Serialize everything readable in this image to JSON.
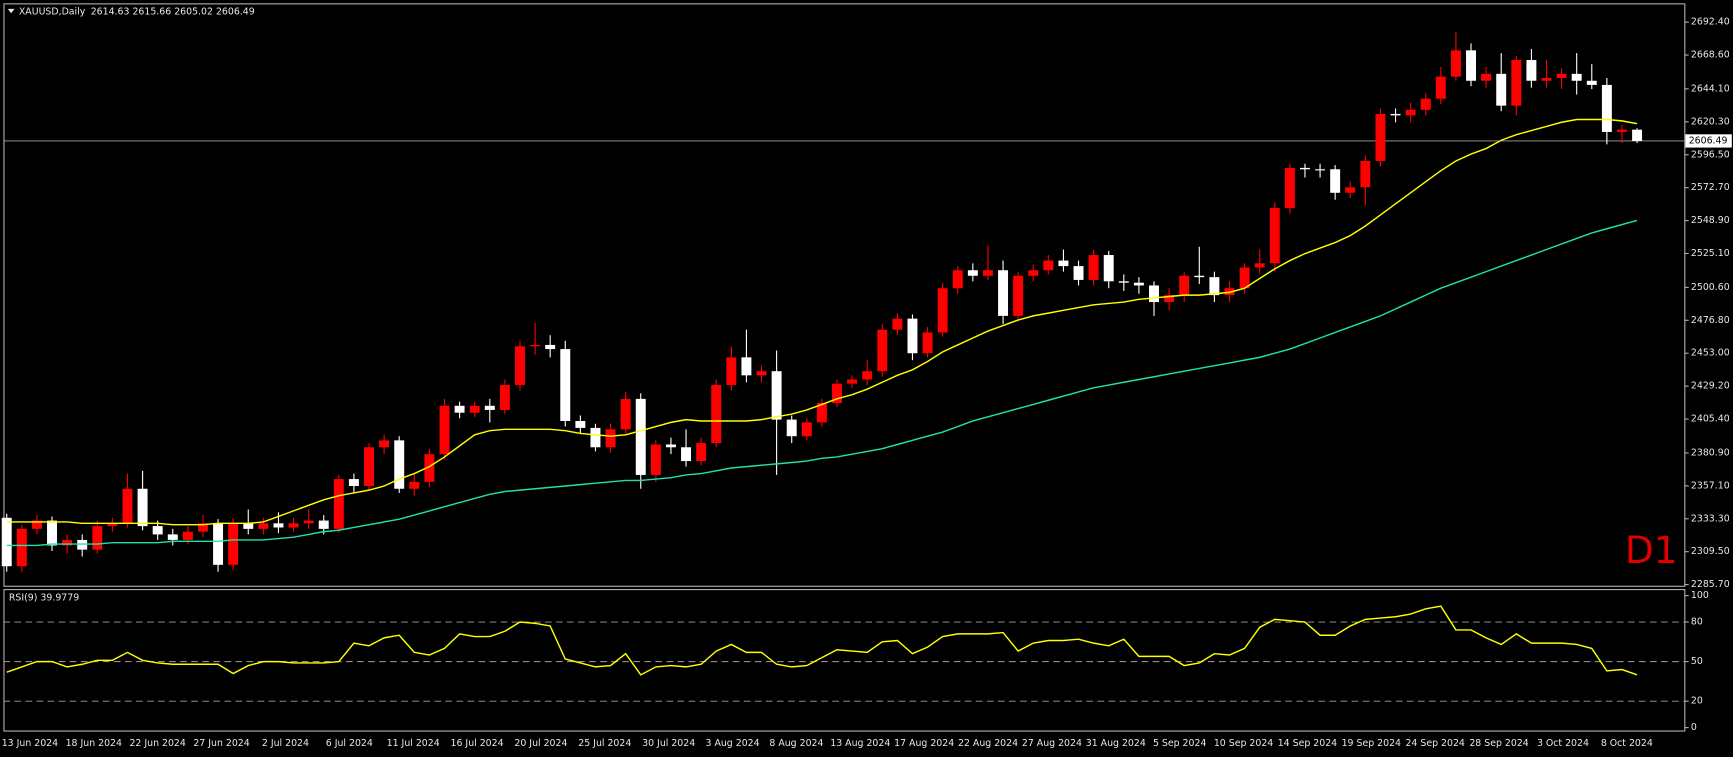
{
  "chart_data": [
    {
      "type": "candlestick",
      "title": "XAUUSD,Daily",
      "subtitle": "2614.63 2615.66 2605.02 2606.49",
      "annotation": "D1",
      "up_color": "#ff0000",
      "down_color": "#ffffff",
      "xtick_labels": [
        "13 Jun 2024",
        "18 Jun 2024",
        "22 Jun 2024",
        "27 Jun 2024",
        "2 Jul 2024",
        "6 Jul 2024",
        "11 Jul 2024",
        "16 Jul 2024",
        "20 Jul 2024",
        "25 Jul 2024",
        "30 Jul 2024",
        "3 Aug 2024",
        "8 Aug 2024",
        "13 Aug 2024",
        "17 Aug 2024",
        "22 Aug 2024",
        "27 Aug 2024",
        "31 Aug 2024",
        "5 Sep 2024",
        "10 Sep 2024",
        "14 Sep 2024",
        "19 Sep 2024",
        "24 Sep 2024",
        "28 Sep 2024",
        "3 Oct 2024",
        "8 Oct 2024"
      ],
      "open": [
        2334,
        2299,
        2326,
        2332,
        2314,
        2318,
        2311,
        2328,
        2330,
        2355,
        2328,
        2322,
        2318,
        2324,
        2330,
        2300,
        2330,
        2326,
        2330,
        2327,
        2330,
        2332,
        2326,
        2362,
        2357,
        2385,
        2390,
        2355,
        2360,
        2380,
        2415,
        2410,
        2415,
        2412,
        2430,
        2458,
        2459,
        2456,
        2404,
        2399,
        2385,
        2398,
        2420,
        2365,
        2387,
        2385,
        2375,
        2388,
        2430,
        2450,
        2437,
        2440,
        2405,
        2393,
        2403,
        2417,
        2431,
        2434,
        2440,
        2470,
        2478,
        2453,
        2468,
        2500,
        2513,
        2509,
        2513,
        2480,
        2509,
        2513,
        2520,
        2516,
        2506,
        2524,
        2505,
        2504,
        2502,
        2490,
        2495,
        2509,
        2508,
        2495,
        2500,
        2515,
        2518,
        2558,
        2587,
        2586,
        2586,
        2569,
        2573,
        2592,
        2626,
        2625,
        2629,
        2637,
        2653,
        2672,
        2650,
        2655,
        2632,
        2665,
        2650,
        2652,
        2655,
        2650,
        2647,
        2613,
        2614.63
      ],
      "high": [
        2337,
        2329,
        2336,
        2335,
        2322,
        2322,
        2332,
        2334,
        2366,
        2368,
        2332,
        2326,
        2328,
        2336,
        2333,
        2334,
        2340,
        2334,
        2338,
        2334,
        2340,
        2336,
        2365,
        2366,
        2388,
        2394,
        2393,
        2366,
        2384,
        2420,
        2418,
        2418,
        2420,
        2434,
        2462,
        2475,
        2466,
        2462,
        2408,
        2402,
        2402,
        2425,
        2424,
        2390,
        2392,
        2398,
        2392,
        2434,
        2458,
        2470,
        2444,
        2455,
        2408,
        2406,
        2420,
        2434,
        2437,
        2448,
        2474,
        2482,
        2481,
        2472,
        2504,
        2516,
        2518,
        2531,
        2520,
        2512,
        2517,
        2524,
        2528,
        2520,
        2528,
        2527,
        2510,
        2508,
        2505,
        2500,
        2512,
        2530,
        2512,
        2505,
        2518,
        2528,
        2562,
        2590,
        2590,
        2590,
        2589,
        2577,
        2596,
        2630,
        2630,
        2634,
        2641,
        2660,
        2685,
        2677,
        2660,
        2670,
        2668,
        2673,
        2665,
        2659,
        2670,
        2662,
        2652,
        2618,
        2615.66
      ],
      "low": [
        2295,
        2295,
        2322,
        2310,
        2308,
        2306,
        2308,
        2324,
        2327,
        2325,
        2318,
        2314,
        2315,
        2320,
        2295,
        2296,
        2322,
        2322,
        2323,
        2324,
        2326,
        2322,
        2323,
        2352,
        2354,
        2380,
        2352,
        2350,
        2356,
        2376,
        2406,
        2407,
        2403,
        2409,
        2426,
        2452,
        2450,
        2400,
        2395,
        2382,
        2381,
        2395,
        2355,
        2360,
        2380,
        2371,
        2372,
        2385,
        2426,
        2432,
        2432,
        2365,
        2388,
        2390,
        2400,
        2414,
        2428,
        2430,
        2436,
        2466,
        2448,
        2450,
        2465,
        2496,
        2505,
        2506,
        2474,
        2477,
        2505,
        2510,
        2512,
        2502,
        2502,
        2500,
        2498,
        2496,
        2480,
        2484,
        2490,
        2503,
        2490,
        2490,
        2496,
        2510,
        2512,
        2554,
        2580,
        2580,
        2564,
        2565,
        2560,
        2588,
        2620,
        2620,
        2625,
        2633,
        2650,
        2646,
        2645,
        2628,
        2625,
        2645,
        2645,
        2644,
        2640,
        2644,
        2604,
        2605,
        2605.02
      ],
      "close": [
        2299,
        2326,
        2332,
        2314,
        2318,
        2311,
        2328,
        2330,
        2355,
        2328,
        2322,
        2318,
        2324,
        2330,
        2300,
        2330,
        2326,
        2330,
        2327,
        2330,
        2332,
        2326,
        2362,
        2357,
        2385,
        2390,
        2355,
        2360,
        2380,
        2415,
        2410,
        2415,
        2412,
        2430,
        2458,
        2459,
        2456,
        2404,
        2399,
        2385,
        2398,
        2420,
        2365,
        2387,
        2385,
        2375,
        2388,
        2430,
        2450,
        2437,
        2440,
        2405,
        2393,
        2403,
        2417,
        2431,
        2434,
        2440,
        2470,
        2478,
        2453,
        2468,
        2500,
        2513,
        2509,
        2513,
        2480,
        2509,
        2513,
        2520,
        2516,
        2506,
        2524,
        2505,
        2504,
        2502,
        2490,
        2495,
        2509,
        2508,
        2495,
        2500,
        2515,
        2518,
        2558,
        2587,
        2586,
        2586,
        2569,
        2573,
        2592,
        2626,
        2625,
        2629,
        2637,
        2653,
        2672,
        2650,
        2655,
        2632,
        2665,
        2650,
        2652,
        2655,
        2650,
        2647,
        2613,
        2614.63,
        2606.49
      ],
      "series": [
        {
          "color": "#ffff00",
          "values": [
            2331,
            2331,
            2331,
            2331,
            2331,
            2330,
            2330,
            2330,
            2330,
            2330,
            2330,
            2329,
            2329,
            2329,
            2330,
            2330,
            2330,
            2331,
            2335,
            2339,
            2343,
            2347,
            2350,
            2352,
            2354,
            2357,
            2362,
            2366,
            2371,
            2378,
            2386,
            2394,
            2397,
            2398,
            2398,
            2398,
            2398,
            2397,
            2395,
            2394,
            2393,
            2394,
            2397,
            2400,
            2403,
            2405,
            2404,
            2404,
            2404,
            2404,
            2405,
            2407,
            2409,
            2412,
            2416,
            2420,
            2423,
            2427,
            2432,
            2437,
            2441,
            2447,
            2454,
            2459,
            2464,
            2469,
            2473,
            2477,
            2480,
            2482,
            2484,
            2486,
            2488,
            2489,
            2490,
            2492,
            2493,
            2494,
            2495,
            2495,
            2496,
            2497,
            2500,
            2507,
            2514,
            2520,
            2525,
            2529,
            2533,
            2538,
            2545,
            2553,
            2561,
            2569,
            2577,
            2585,
            2592,
            2597,
            2601,
            2607,
            2611,
            2614,
            2617,
            2620,
            2622,
            2622,
            2622,
            2621,
            2619
          ]
        },
        {
          "color": "#20e0b0",
          "values": [
            2314,
            2314,
            2314,
            2315,
            2315,
            2315,
            2315,
            2316,
            2316,
            2316,
            2316,
            2317,
            2317,
            2317,
            2317,
            2318,
            2318,
            2318,
            2319,
            2320,
            2322,
            2324,
            2325,
            2327,
            2329,
            2331,
            2333,
            2336,
            2339,
            2342,
            2345,
            2348,
            2351,
            2353,
            2354,
            2355,
            2356,
            2357,
            2358,
            2359,
            2360,
            2361,
            2361,
            2362,
            2363,
            2365,
            2366,
            2368,
            2370,
            2371,
            2372,
            2373,
            2374,
            2375,
            2377,
            2378,
            2380,
            2382,
            2384,
            2387,
            2390,
            2393,
            2396,
            2400,
            2404,
            2407,
            2410,
            2413,
            2416,
            2419,
            2422,
            2425,
            2428,
            2430,
            2432,
            2434,
            2436,
            2438,
            2440,
            2442,
            2444,
            2446,
            2448,
            2450,
            2453,
            2456,
            2460,
            2464,
            2468,
            2472,
            2476,
            2480,
            2485,
            2490,
            2495,
            2500,
            2504,
            2508,
            2512,
            2516,
            2520,
            2524,
            2528,
            2532,
            2536,
            2540,
            2543,
            2546,
            2549
          ]
        }
      ],
      "price_line": {
        "value": 2606.49,
        "label": "2606.49"
      },
      "ylim": [
        2284.1,
        2706.0
      ],
      "yticks": [
        {
          "value": 2692.4,
          "label": "2692.40"
        },
        {
          "value": 2668.6,
          "label": "2668.60"
        },
        {
          "value": 2644.1,
          "label": "2644.10"
        },
        {
          "value": 2620.3,
          "label": "2620.30"
        },
        {
          "value": 2596.5,
          "label": "2596.50"
        },
        {
          "value": 2572.7,
          "label": "2572.70"
        },
        {
          "value": 2548.9,
          "label": "2548.90"
        },
        {
          "value": 2525.1,
          "label": "2525.10"
        },
        {
          "value": 2500.6,
          "label": "2500.60"
        },
        {
          "value": 2476.8,
          "label": "2476.80"
        },
        {
          "value": 2453,
          "label": "2453.00"
        },
        {
          "value": 2429.2,
          "label": "2429.20"
        },
        {
          "value": 2405.4,
          "label": "2405.40"
        },
        {
          "value": 2380.9,
          "label": "2380.90"
        },
        {
          "value": 2357.1,
          "label": "2357.10"
        },
        {
          "value": 2333.3,
          "label": "2333.30"
        },
        {
          "value": 2309.5,
          "label": "2309.50"
        },
        {
          "value": 2285.7,
          "label": "2285.70"
        }
      ]
    },
    {
      "type": "line",
      "title": "RSI(9) 39.9779",
      "color": "#ffff00",
      "values": [
        42,
        46,
        50,
        50,
        46,
        48,
        51,
        51,
        57,
        51,
        49,
        48,
        48,
        48,
        48,
        41,
        47,
        50,
        50,
        49,
        49,
        49,
        50,
        64,
        62,
        68,
        70,
        57,
        55,
        60,
        71,
        69,
        69,
        73,
        80,
        79,
        77,
        52,
        49,
        46,
        47,
        56,
        40,
        46,
        47,
        46,
        48,
        58,
        63,
        57,
        57,
        48,
        46,
        47,
        53,
        59,
        58,
        57,
        65,
        66,
        56,
        61,
        69,
        71,
        71,
        71,
        72,
        58,
        64,
        66,
        66,
        67,
        64,
        62,
        67,
        54,
        54,
        54,
        47,
        49,
        56,
        55,
        60,
        76,
        82,
        81,
        80,
        70,
        70,
        77,
        82,
        83,
        84,
        86,
        90,
        92,
        74,
        74,
        68,
        63,
        71,
        64,
        64,
        64,
        63,
        60,
        43,
        44,
        39.9779
      ],
      "ylim": [
        -3,
        105
      ],
      "yticks": [
        100,
        80,
        50,
        20,
        0
      ],
      "level_lines": [
        80,
        50,
        20
      ]
    }
  ]
}
